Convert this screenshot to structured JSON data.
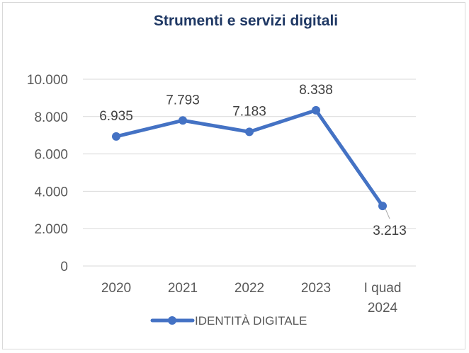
{
  "chart_data": {
    "type": "line",
    "title": "Strumenti e servizi digitali",
    "categories": [
      "2020",
      "2021",
      "2022",
      "2023",
      "I quad 2024"
    ],
    "category_label_lines": [
      [
        "2020"
      ],
      [
        "2021"
      ],
      [
        "2022"
      ],
      [
        "2023"
      ],
      [
        "I quad",
        "2024"
      ]
    ],
    "series": [
      {
        "name": "IDENTITÀ DIGITALE",
        "values": [
          6935,
          7793,
          7183,
          8338,
          3213
        ],
        "labels": [
          "6.935",
          "7.793",
          "7.183",
          "8.338",
          "3.213"
        ],
        "color": "#4472c4"
      }
    ],
    "ylim": [
      0,
      10000
    ],
    "yticks": [
      0,
      2000,
      4000,
      6000,
      8000,
      10000
    ],
    "ytick_labels": [
      "0",
      "2.000",
      "4.000",
      "6.000",
      "8.000",
      "10.000"
    ],
    "grid": true,
    "legend_position": "bottom",
    "xlabel": "",
    "ylabel": ""
  },
  "colors": {
    "title": "#1f3864",
    "gridline": "#d9d9d9",
    "series": "#4472c4",
    "tick_text": "#595959"
  }
}
